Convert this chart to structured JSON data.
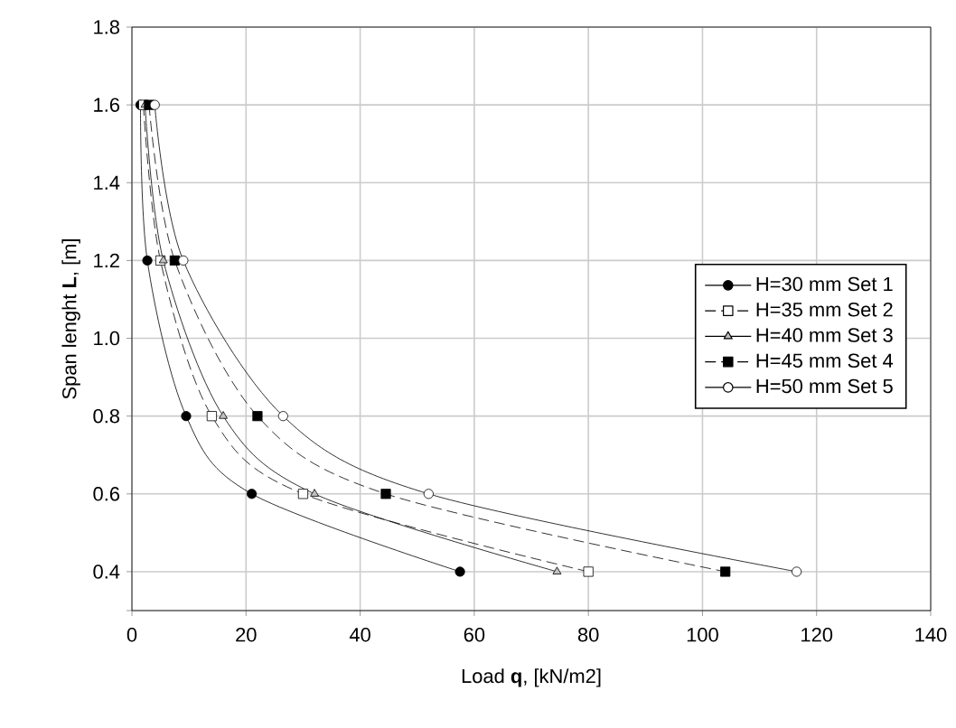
{
  "chart_data": {
    "type": "line",
    "xlabel": "Load **q**, [kN/m2]",
    "ylabel": "Span lenght **L**, [m]",
    "xlim": [
      0,
      140
    ],
    "xticks": [
      0,
      20,
      40,
      60,
      80,
      100,
      120,
      140
    ],
    "ylim": [
      0.3,
      1.8
    ],
    "yticks": [
      {
        "value": 0.3,
        "label": null
      },
      "0.4",
      0.6,
      0.8,
      "1.0",
      1.2,
      1.4,
      1.6,
      1.8
    ],
    "grid": true,
    "legend": "right",
    "series": [
      {
        "name": "H=30 mm Set 1",
        "color": "#000000",
        "marker": "circle",
        "line_style": "solid",
        "x": [
          1.5,
          2.7,
          9.5,
          21,
          57.5
        ],
        "values": [
          1.6,
          1.2,
          0.8,
          0.6,
          0.4
        ]
      },
      {
        "name": "H=35 mm Set 2",
        "color": "#ffffff",
        "marker": "square",
        "line_style": "dashed",
        "x": [
          2,
          5,
          14,
          30,
          80
        ],
        "values": [
          1.6,
          1.2,
          0.8,
          0.6,
          0.4
        ]
      },
      {
        "name": "H=40 mm Set 3",
        "color": "#c0c0c0",
        "marker": "triangle",
        "line_style": "solid",
        "x": [
          2.3,
          5.5,
          16,
          32,
          74.5
        ],
        "values": [
          1.6,
          1.2,
          0.8,
          0.6,
          0.4
        ]
      },
      {
        "name": "H=45 mm Set 4",
        "color": "#000000",
        "marker": "square",
        "line_style": "dashed",
        "x": [
          3,
          7.5,
          22,
          44.5,
          104
        ],
        "values": [
          1.6,
          1.2,
          0.8,
          0.6,
          0.4
        ]
      },
      {
        "name": "H=50 mm Set 5",
        "color": "#ffffff",
        "marker": "circle",
        "line_style": "solid",
        "x": [
          4,
          9,
          26.5,
          52,
          116.5
        ],
        "values": [
          1.6,
          1.2,
          0.8,
          0.6,
          0.4
        ]
      }
    ]
  }
}
